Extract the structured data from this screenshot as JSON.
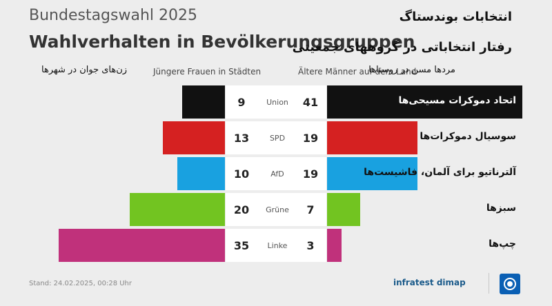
{
  "header": {
    "supertitle_de": "Bundestagswahl 2025",
    "title_de": "Wahlverhalten in Bevölkerungsgruppen",
    "supertitle_fa": "انتخابات بوندستاگ",
    "title_fa": "رفتار انتخاباتی در گروههای جمعیتی"
  },
  "column_headers": {
    "left_fa": "زن‌های جوان در شهرها",
    "left_de": "Jüngere Frauen in Städten",
    "right_de": "Ältere Männer auf dem Land",
    "right_fa": "مردها مسن در روستاها"
  },
  "footer": {
    "stand": "Stand:  24.02.2025, 00:28 Uhr",
    "brand": "infratest dimap"
  },
  "colors": {
    "Union": "#111111",
    "SPD": "#d52121",
    "AfD": "#19a1e0",
    "Grüne": "#72c421",
    "Linke": "#c0317b"
  },
  "chart_data": {
    "type": "bar",
    "categories": [
      "Union",
      "SPD",
      "AfD",
      "Grüne",
      "Linke"
    ],
    "labels_fa": [
      "اتحاد دموکرات مسیحی‌ها",
      "سوسیال دموکرات‌ها",
      "آلترناتیو برای آلمان، فاشیست‌ها",
      "سبزها",
      "چپ‌ها"
    ],
    "series": [
      {
        "name": "Jüngere Frauen in Städten",
        "values": [
          9,
          13,
          10,
          20,
          35
        ]
      },
      {
        "name": "Ältere Männer auf dem Land",
        "values": [
          41,
          19,
          19,
          7,
          3
        ]
      }
    ],
    "xlim": [
      0,
      41
    ]
  }
}
